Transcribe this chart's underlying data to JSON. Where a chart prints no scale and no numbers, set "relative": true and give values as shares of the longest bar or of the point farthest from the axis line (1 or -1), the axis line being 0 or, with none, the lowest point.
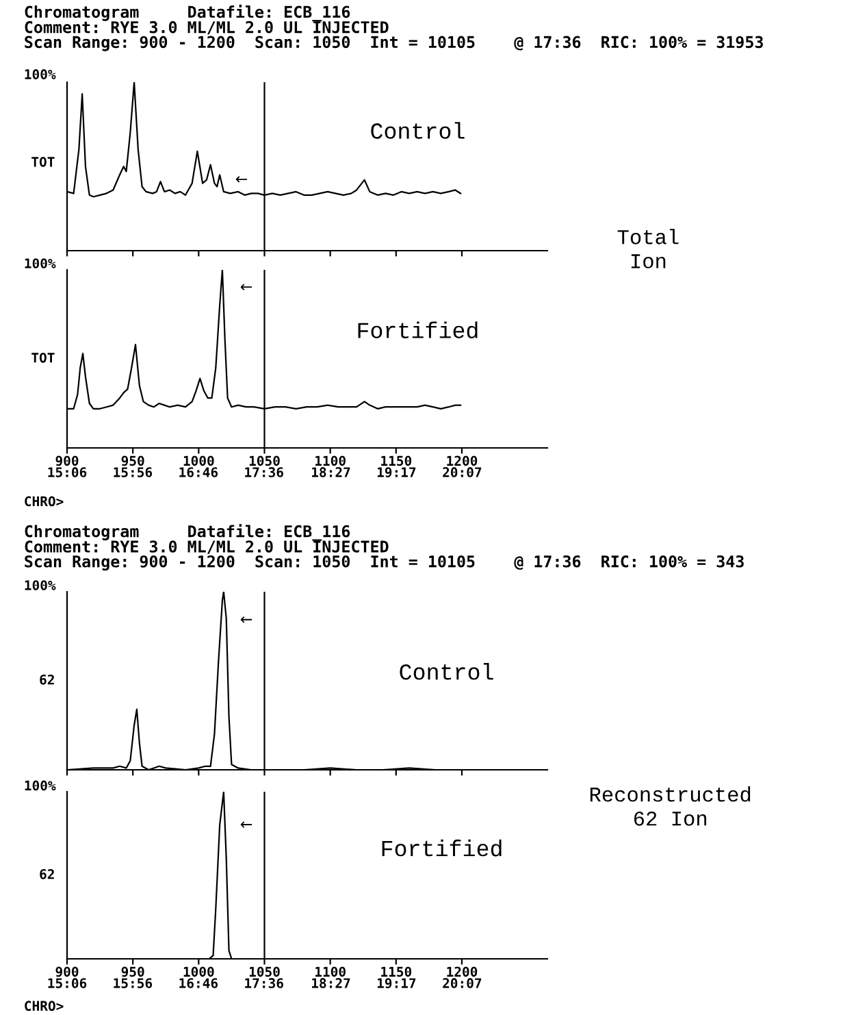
{
  "chart_data": [
    {
      "type": "line",
      "relative": true,
      "title": "Chromatogram     Datafile: ECB_116\nComment: RYE 3.0 ML/ML 2.0 UL INJECTED\nScan Range: 900 - 1200  Scan: 1050  Int = 10105    @ 17:36  RIC: 100% = 31953",
      "series": [
        {
          "color": "#000000",
          "x": [
            900,
            905,
            909,
            911.5,
            914,
            917,
            920,
            925,
            930,
            935,
            940,
            943,
            945,
            948,
            951,
            954,
            957,
            960,
            965,
            968,
            971,
            974,
            978,
            982,
            986,
            990,
            995,
            999,
            1003,
            1006,
            1009,
            1012,
            1014,
            1016,
            1019,
            1024,
            1030,
            1035,
            1040,
            1045,
            1050,
            1056,
            1062,
            1068,
            1074,
            1080,
            1086,
            1092,
            1098,
            1104,
            1110,
            1116,
            1120,
            1126,
            1130,
            1136,
            1142,
            1148,
            1154,
            1160,
            1166,
            1172,
            1178,
            1184,
            1190,
            1195,
            1199
          ],
          "values": [
            0.35,
            0.34,
            0.6,
            0.93,
            0.5,
            0.33,
            0.32,
            0.33,
            0.34,
            0.36,
            0.45,
            0.5,
            0.47,
            0.7,
            1,
            0.6,
            0.38,
            0.35,
            0.34,
            0.35,
            0.41,
            0.35,
            0.36,
            0.34,
            0.35,
            0.33,
            0.4,
            0.59,
            0.4,
            0.42,
            0.51,
            0.4,
            0.38,
            0.45,
            0.35,
            0.34,
            0.35,
            0.33,
            0.34,
            0.34,
            0.33,
            0.34,
            0.33,
            0.34,
            0.35,
            0.33,
            0.33,
            0.34,
            0.35,
            0.34,
            0.33,
            0.34,
            0.36,
            0.42,
            0.35,
            0.33,
            0.34,
            0.33,
            0.35,
            0.34,
            0.35,
            0.34,
            0.35,
            0.34,
            0.35,
            0.36,
            0.34
          ]
        }
      ],
      "xlim": [
        900,
        1265
      ],
      "xticks": [
        900,
        950,
        1000,
        1050,
        1100,
        1150,
        1200
      ],
      "tick_labels": false,
      "ref_lines": [
        {
          "axis": "x",
          "value": 1050
        }
      ],
      "annotations": [
        "Control",
        "Total\nIon",
        "←",
        "100%",
        "TOT"
      ]
    },
    {
      "type": "line",
      "relative": true,
      "series": [
        {
          "color": "#000000",
          "x": [
            900,
            905,
            908,
            910,
            912,
            914,
            917,
            920,
            925,
            930,
            935,
            940,
            943,
            946,
            949,
            952,
            955,
            958,
            962,
            966,
            970,
            974,
            978,
            984,
            990,
            995,
            998,
            1001,
            1004,
            1007,
            1010,
            1013,
            1016,
            1018,
            1020,
            1022,
            1025,
            1030,
            1036,
            1042,
            1050,
            1058,
            1066,
            1074,
            1082,
            1090,
            1098,
            1106,
            1114,
            1120,
            1126,
            1130,
            1136,
            1142,
            1150,
            1158,
            1166,
            1172,
            1178,
            1184,
            1190,
            1195,
            1199
          ],
          "values": [
            0.22,
            0.22,
            0.3,
            0.45,
            0.53,
            0.4,
            0.25,
            0.22,
            0.22,
            0.23,
            0.24,
            0.28,
            0.31,
            0.33,
            0.45,
            0.58,
            0.35,
            0.26,
            0.24,
            0.23,
            0.25,
            0.24,
            0.23,
            0.24,
            0.23,
            0.26,
            0.32,
            0.39,
            0.32,
            0.28,
            0.28,
            0.45,
            0.8,
            1,
            0.6,
            0.28,
            0.23,
            0.24,
            0.23,
            0.23,
            0.22,
            0.23,
            0.23,
            0.22,
            0.23,
            0.23,
            0.24,
            0.23,
            0.23,
            0.23,
            0.26,
            0.24,
            0.22,
            0.23,
            0.23,
            0.23,
            0.23,
            0.24,
            0.23,
            0.22,
            0.23,
            0.24,
            0.24
          ]
        }
      ],
      "xlim": [
        900,
        1265
      ],
      "xticks": [
        900,
        950,
        1000,
        1050,
        1100,
        1150,
        1200
      ],
      "x2lim": [
        15.1,
        21.2
      ],
      "x2ticks": [
        {
          "value": 15.1,
          "label": "15:06"
        },
        {
          "value": 15.933,
          "label": "15:56"
        },
        {
          "value": 16.767,
          "label": "16:46"
        },
        {
          "value": 17.6,
          "label": "17:36"
        },
        {
          "value": 18.45,
          "label": "18:27"
        },
        {
          "value": 19.283,
          "label": "19:17"
        },
        {
          "value": 20.117,
          "label": "20:07"
        }
      ],
      "tick_labels": "x",
      "ref_lines": [
        {
          "axis": "x",
          "value": 1050
        }
      ],
      "annotations": [
        "Fortified",
        "CHRO>",
        "←",
        "100%",
        "TOT"
      ]
    },
    {
      "type": "line",
      "relative": true,
      "title": "Chromatogram     Datafile: ECB_116\nComment: RYE 3.0 ML/ML 2.0 UL INJECTED\nScan Range: 900 - 1200  Scan: 1050  Int = 10105    @ 17:36  RIC: 100% = 343",
      "series": [
        {
          "color": "#000000",
          "x": [
            900,
            920,
            935,
            940,
            945,
            948,
            951,
            953,
            955,
            957,
            962,
            970,
            975,
            990,
            1000,
            1005,
            1009,
            1012,
            1015,
            1018,
            1019,
            1021,
            1023,
            1025,
            1030,
            1040,
            1060,
            1080,
            1100,
            1120,
            1140,
            1160,
            1180,
            1200
          ],
          "values": [
            0,
            0.01,
            0.01,
            0.02,
            0.01,
            0.05,
            0.25,
            0.34,
            0.15,
            0.02,
            0,
            0.02,
            0.01,
            0,
            0.01,
            0.02,
            0.02,
            0.2,
            0.6,
            0.95,
            1,
            0.85,
            0.3,
            0.03,
            0.01,
            0,
            0,
            0,
            0.01,
            0,
            0,
            0.01,
            0,
            0
          ]
        }
      ],
      "xlim": [
        900,
        1265
      ],
      "xticks": [
        900,
        950,
        1000,
        1050,
        1100,
        1150,
        1200
      ],
      "tick_labels": false,
      "ref_lines": [
        {
          "axis": "x",
          "value": 1050
        }
      ],
      "annotations": [
        "Control",
        "Reconstructed\n62 Ion",
        "←",
        "100%",
        "62"
      ]
    },
    {
      "type": "line",
      "relative": true,
      "series": [
        {
          "color": "#000000",
          "x": [
            900,
            950,
            1000,
            1008,
            1011,
            1013,
            1016,
            1019,
            1021,
            1023,
            1025,
            1050,
            1100,
            1150,
            1200
          ],
          "values": [
            0,
            0,
            0,
            0,
            0.02,
            0.3,
            0.8,
            1,
            0.6,
            0.05,
            0,
            0,
            0,
            0,
            0
          ]
        }
      ],
      "xlim": [
        900,
        1265
      ],
      "xticks": [
        900,
        950,
        1000,
        1050,
        1100,
        1150,
        1200
      ],
      "x2lim": [
        15.1,
        21.2
      ],
      "x2ticks": [
        {
          "value": 15.1,
          "label": "15:06"
        },
        {
          "value": 15.933,
          "label": "15:56"
        },
        {
          "value": 16.767,
          "label": "16:46"
        },
        {
          "value": 17.6,
          "label": "17:36"
        },
        {
          "value": 18.45,
          "label": "18:27"
        },
        {
          "value": 19.283,
          "label": "19:17"
        },
        {
          "value": 20.117,
          "label": "20:07"
        }
      ],
      "tick_labels": "x",
      "ref_lines": [
        {
          "axis": "x",
          "value": 1050
        }
      ],
      "annotations": [
        "Fortified",
        "CHRO>",
        "←",
        "100%",
        "62"
      ]
    }
  ]
}
